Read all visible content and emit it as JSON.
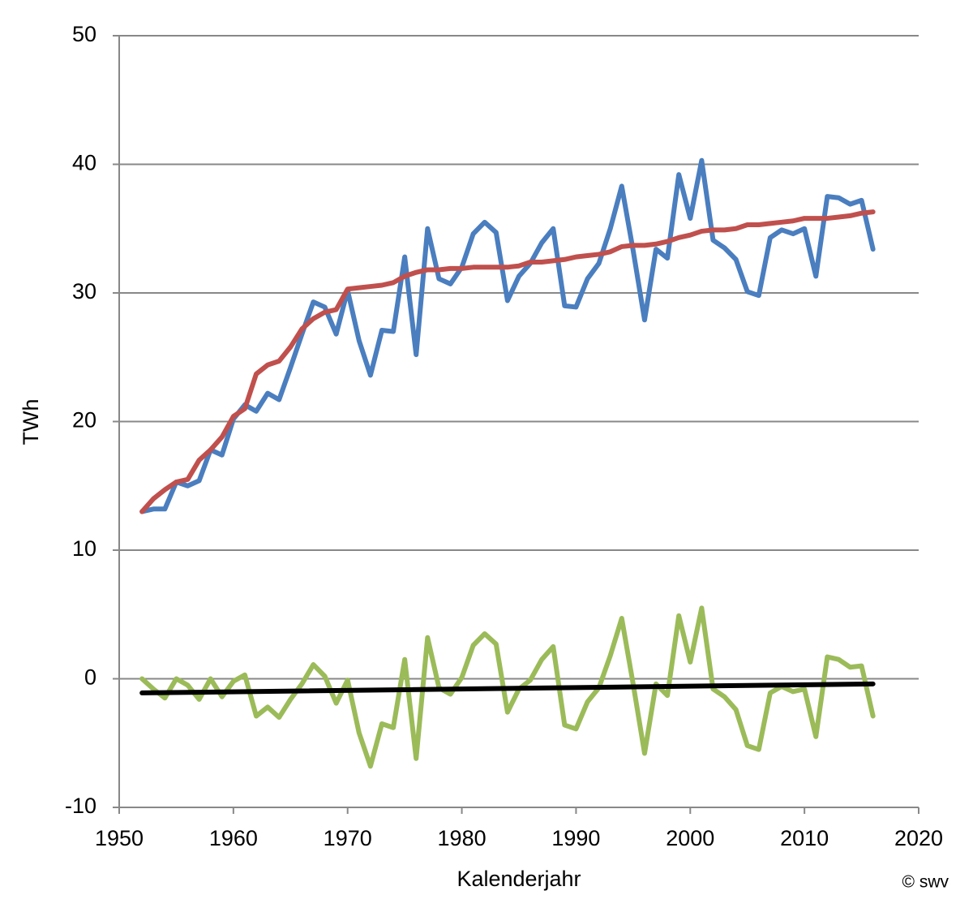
{
  "chart_data": {
    "type": "line",
    "x_label": "Kalenderjahr",
    "y_label": "TWh",
    "credit": "© swv",
    "x": [
      1952,
      1953,
      1954,
      1955,
      1956,
      1957,
      1958,
      1959,
      1960,
      1961,
      1962,
      1963,
      1964,
      1965,
      1966,
      1967,
      1968,
      1969,
      1970,
      1971,
      1972,
      1973,
      1974,
      1975,
      1976,
      1977,
      1978,
      1979,
      1980,
      1981,
      1982,
      1983,
      1984,
      1985,
      1986,
      1987,
      1988,
      1989,
      1990,
      1991,
      1992,
      1993,
      1994,
      1995,
      1996,
      1997,
      1998,
      1999,
      2000,
      2001,
      2002,
      2003,
      2004,
      2005,
      2006,
      2007,
      2008,
      2009,
      2010,
      2011,
      2012,
      2013,
      2014,
      2015,
      2016
    ],
    "series": [
      {
        "color": "#4a7ebf",
        "values": [
          13.0,
          13.2,
          13.2,
          15.3,
          15.0,
          15.4,
          17.8,
          17.4,
          20.2,
          21.3,
          20.8,
          22.2,
          21.7,
          24.2,
          26.8,
          29.3,
          28.9,
          26.8,
          30.2,
          26.3,
          23.6,
          27.1,
          27.0,
          32.8,
          25.2,
          35.0,
          31.1,
          30.7,
          32.0,
          34.6,
          35.5,
          34.7,
          29.4,
          31.3,
          32.3,
          33.9,
          35.0,
          29.0,
          28.9,
          31.1,
          32.3,
          35.0,
          38.3,
          33.3,
          27.9,
          33.4,
          32.7,
          39.2,
          35.8,
          40.3,
          34.1,
          33.5,
          32.6,
          30.1,
          29.8,
          34.3,
          34.9,
          34.6,
          35.0,
          31.3,
          37.5,
          37.4,
          36.9,
          37.2,
          33.4
        ]
      },
      {
        "color": "#c0504d",
        "values": [
          13.0,
          14.0,
          14.7,
          15.3,
          15.5,
          17.0,
          17.8,
          18.8,
          20.4,
          21.0,
          23.7,
          24.4,
          24.7,
          25.8,
          27.2,
          28.0,
          28.5,
          28.7,
          30.3,
          30.4,
          30.5,
          30.6,
          30.8,
          31.3,
          31.6,
          31.8,
          31.8,
          31.9,
          31.9,
          32.0,
          32.0,
          32.0,
          32.0,
          32.1,
          32.4,
          32.4,
          32.5,
          32.6,
          32.8,
          32.9,
          33.0,
          33.2,
          33.6,
          33.7,
          33.7,
          33.8,
          34.0,
          34.3,
          34.5,
          34.8,
          34.9,
          34.9,
          35.0,
          35.3,
          35.3,
          35.4,
          35.5,
          35.6,
          35.8,
          35.8,
          35.8,
          35.9,
          36.0,
          36.2,
          36.3
        ]
      },
      {
        "color": "#9bbb59",
        "values": [
          0.0,
          -0.8,
          -1.5,
          0.0,
          -0.5,
          -1.6,
          0.0,
          -1.4,
          -0.2,
          0.3,
          -2.9,
          -2.2,
          -3.0,
          -1.6,
          -0.4,
          1.1,
          0.2,
          -1.9,
          -0.1,
          -4.2,
          -6.8,
          -3.5,
          -3.8,
          1.5,
          -6.2,
          3.2,
          -0.7,
          -1.2,
          0.1,
          2.6,
          3.5,
          2.7,
          -2.6,
          -0.8,
          -0.1,
          1.5,
          2.5,
          -3.6,
          -3.9,
          -1.8,
          -0.7,
          1.8,
          4.7,
          -0.4,
          -5.8,
          -0.4,
          -1.3,
          4.9,
          1.3,
          5.5,
          -0.8,
          -1.4,
          -2.4,
          -5.2,
          -5.5,
          -1.1,
          -0.6,
          -1.0,
          -0.8,
          -4.5,
          1.7,
          1.5,
          0.9,
          1.0,
          -2.9
        ]
      },
      {
        "color": "#000000",
        "x": [
          1952,
          2016
        ],
        "values": [
          -1.1,
          -0.4
        ]
      }
    ],
    "xlim": [
      1950,
      2020
    ],
    "xticks": [
      1950,
      1960,
      1970,
      1980,
      1990,
      2000,
      2010,
      2020
    ],
    "ylim": [
      -10,
      50
    ],
    "yticks": [
      -10,
      0,
      10,
      20,
      30,
      40,
      50
    ],
    "grid": true
  }
}
